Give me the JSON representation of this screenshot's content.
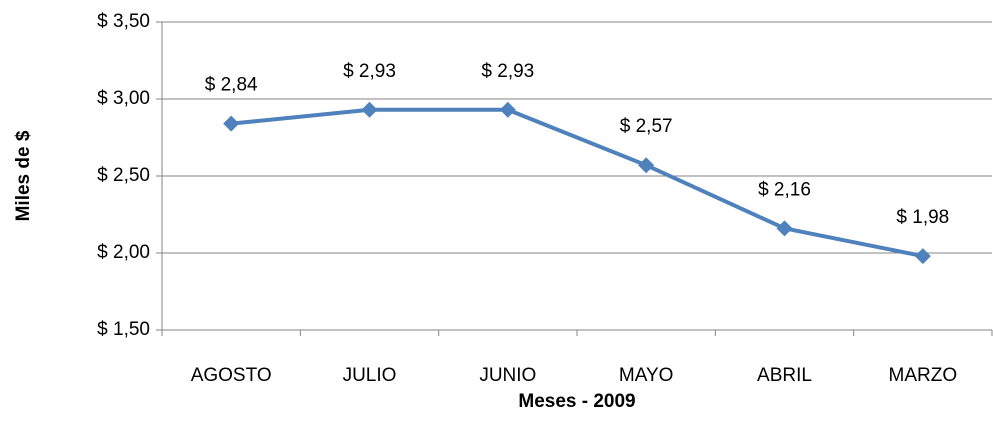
{
  "chart_data": {
    "type": "line",
    "x_label": "Meses - 2009",
    "y_label": "Miles de $",
    "categories": [
      "AGOSTO",
      "JULIO",
      "JUNIO",
      "MAYO",
      "ABRIL",
      "MARZO"
    ],
    "series": [
      {
        "name": "Miles de $",
        "color": "#4f81bd",
        "values": [
          2.84,
          2.93,
          2.93,
          2.57,
          2.16,
          1.98
        ],
        "value_labels": [
          "$ 2,84",
          "$ 2,93",
          "$ 2,93",
          "$ 2,57",
          "$ 2,16",
          "$ 1,98"
        ]
      }
    ],
    "ylim": [
      1.5,
      3.5
    ],
    "yticks": [
      {
        "value": 1.5,
        "label": "$ 1,50"
      },
      {
        "value": 2.0,
        "label": "$ 2,00"
      },
      {
        "value": 2.5,
        "label": "$ 2,50"
      },
      {
        "value": 3.0,
        "label": "$ 3,00"
      },
      {
        "value": 3.5,
        "label": "$ 3,50"
      }
    ],
    "grid": true
  }
}
